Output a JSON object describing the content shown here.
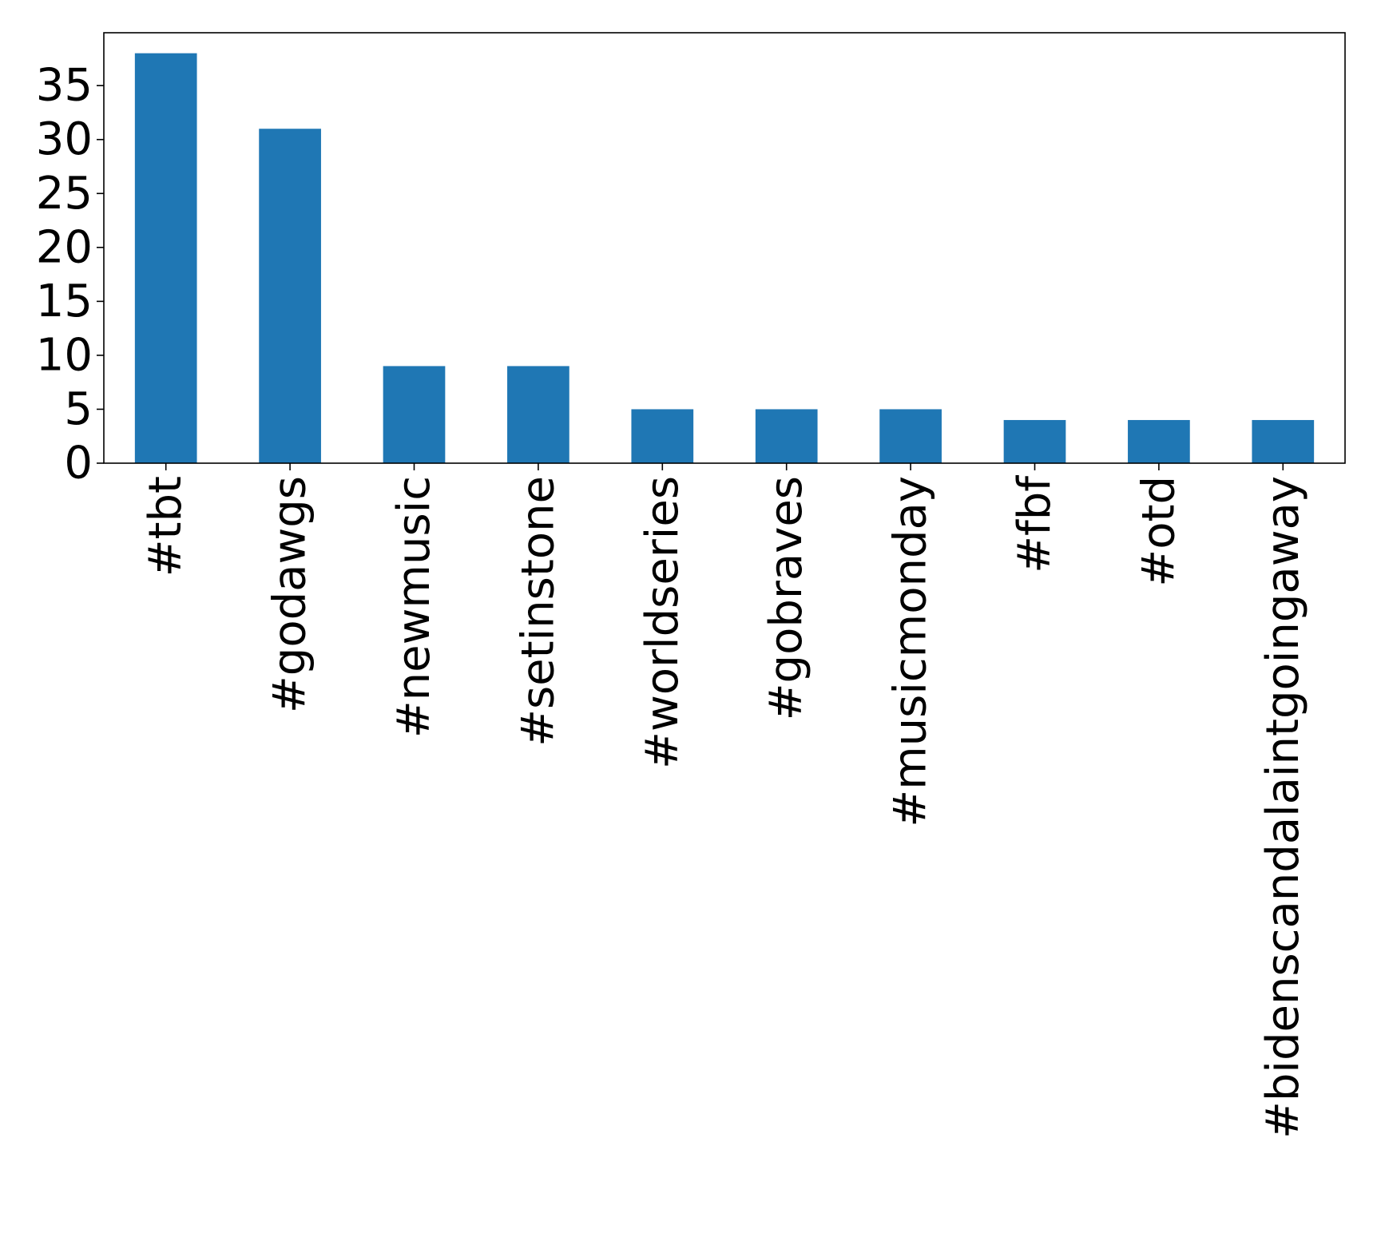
{
  "chart_data": {
    "type": "bar",
    "title": "",
    "xlabel": "",
    "ylabel": "",
    "categories": [
      "#tbt",
      "#godawgs",
      "#newmusic",
      "#setinstone",
      "#worldseries",
      "#gobraves",
      "#musicmonday",
      "#fbf",
      "#otd",
      "#bidenscandalaintgoingaway"
    ],
    "values": [
      38,
      31,
      9,
      9,
      5,
      5,
      5,
      4,
      4,
      4
    ],
    "ylim": [
      0,
      39.9
    ],
    "yticks": [
      0,
      5,
      10,
      15,
      20,
      25,
      30,
      35
    ],
    "ytick_labels": [
      "0",
      "5",
      "10",
      "15",
      "20",
      "25",
      "30",
      "35"
    ],
    "bar_color": "#1f77b4",
    "grid": false,
    "legend": "none"
  }
}
